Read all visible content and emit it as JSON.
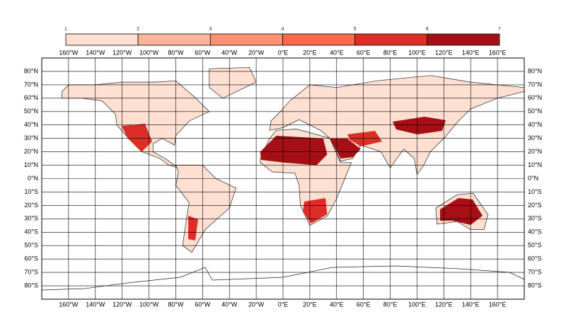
{
  "map": {
    "colorbar": {
      "labels": [
        1,
        2,
        3,
        4,
        5,
        6,
        7
      ],
      "colors": [
        "#fde0d2",
        "#fcb59b",
        "#fc9272",
        "#fb6a4a",
        "#de2d26",
        "#a50f15"
      ]
    },
    "lon_ticks": [
      {
        "value": -160,
        "label": "160°W"
      },
      {
        "value": -140,
        "label": "140°W"
      },
      {
        "value": -120,
        "label": "120°W"
      },
      {
        "value": -100,
        "label": "100°W"
      },
      {
        "value": -80,
        "label": "80°W"
      },
      {
        "value": -60,
        "label": "60°W"
      },
      {
        "value": -40,
        "label": "40°W"
      },
      {
        "value": -20,
        "label": "20°W"
      },
      {
        "value": 0,
        "label": "0°E"
      },
      {
        "value": 20,
        "label": "20°E"
      },
      {
        "value": 40,
        "label": "40°E"
      },
      {
        "value": 60,
        "label": "60°E"
      },
      {
        "value": 80,
        "label": "80°E"
      },
      {
        "value": 100,
        "label": "100°E"
      },
      {
        "value": 120,
        "label": "120°E"
      },
      {
        "value": 140,
        "label": "140°E"
      },
      {
        "value": 160,
        "label": "160°E"
      }
    ],
    "lat_ticks": [
      {
        "value": 80,
        "label": "80°N"
      },
      {
        "value": 70,
        "label": "70°N"
      },
      {
        "value": 60,
        "label": "60°N"
      },
      {
        "value": 50,
        "label": "50°N"
      },
      {
        "value": 40,
        "label": "40°N"
      },
      {
        "value": 30,
        "label": "30°N"
      },
      {
        "value": 20,
        "label": "20°N"
      },
      {
        "value": 10,
        "label": "10°N"
      },
      {
        "value": 0,
        "label": "0°N"
      },
      {
        "value": -10,
        "label": "10°S"
      },
      {
        "value": -20,
        "label": "20°S"
      },
      {
        "value": -30,
        "label": "30°S"
      },
      {
        "value": -40,
        "label": "40°S"
      },
      {
        "value": -50,
        "label": "50°S"
      },
      {
        "value": -60,
        "label": "60°S"
      },
      {
        "value": -70,
        "label": "70°S"
      },
      {
        "value": -80,
        "label": "80°S"
      }
    ]
  }
}
